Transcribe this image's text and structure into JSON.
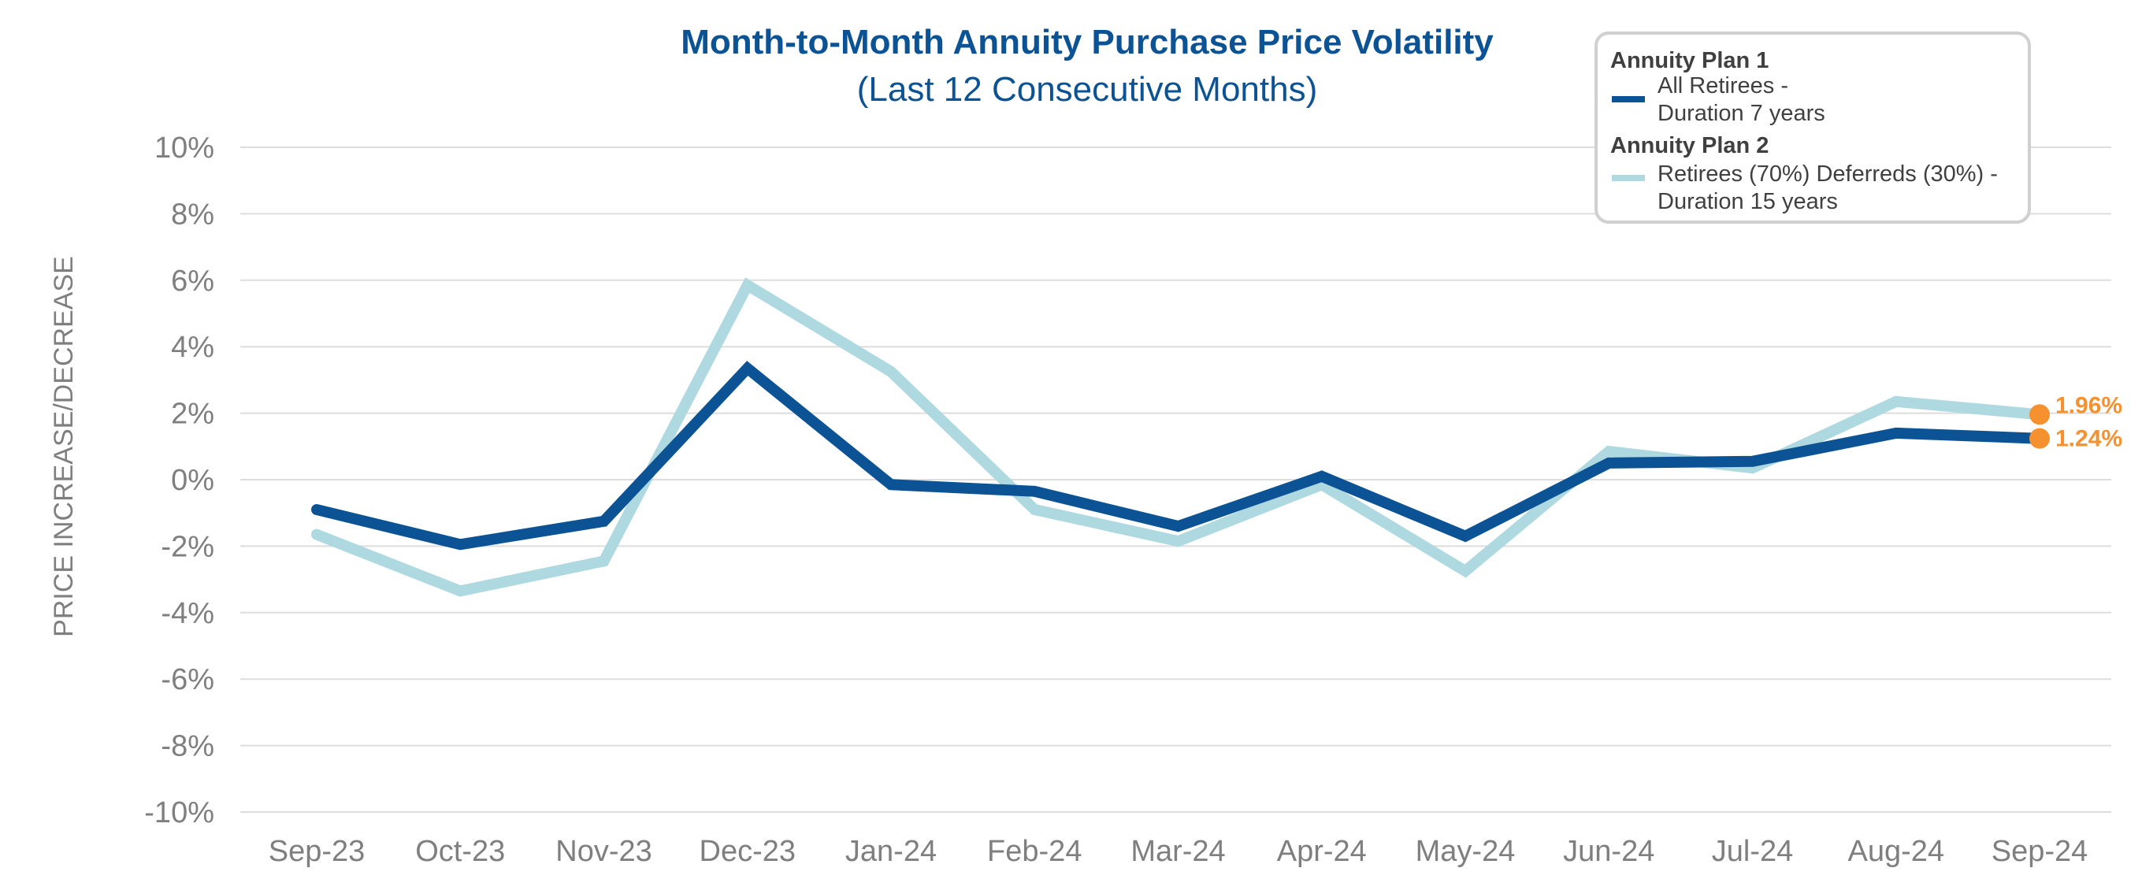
{
  "colors": {
    "title": "#0b5394",
    "plan1": "#0b5394",
    "plan2": "#aed9e0",
    "marker": "#f5922f",
    "grid": "#dddddd",
    "axis_text": "#7f7f7f",
    "legend_text": "#404040",
    "legend_border": "#d0d0d0"
  },
  "chart_data": {
    "type": "line",
    "title": "Month-to-Month Annuity Purchase Price Volatility",
    "subtitle": "(Last 12 Consecutive Months)",
    "xlabel": "",
    "ylabel": "PRICE INCREASE/DECREASE",
    "ylim": [
      -10,
      10
    ],
    "ytick_values": [
      10,
      8,
      6,
      4,
      2,
      0,
      -2,
      -4,
      -6,
      -8,
      -10
    ],
    "ytick_labels": [
      "10%",
      "8%",
      "6%",
      "4%",
      "2%",
      "0%",
      "-2%",
      "-4%",
      "-6%",
      "-8%",
      "-10%"
    ],
    "grid": true,
    "legend_position": "top-right",
    "categories": [
      "Sep-23",
      "Oct-23",
      "Nov-23",
      "Dec-23",
      "Jan-24",
      "Feb-24",
      "Mar-24",
      "Apr-24",
      "May-24",
      "Jun-24",
      "Jul-24",
      "Aug-24",
      "Sep-24"
    ],
    "series": [
      {
        "name": "Annuity Plan 1",
        "heading": "Annuity Plan 1",
        "description_lines": [
          "All Retirees -",
          "Duration 7 years"
        ],
        "color": "#0b5394",
        "values": [
          -0.9,
          -1.95,
          -1.25,
          3.35,
          -0.15,
          -0.35,
          -1.4,
          0.1,
          -1.7,
          0.5,
          0.55,
          1.4,
          1.24
        ]
      },
      {
        "name": "Annuity Plan 2",
        "heading": "Annuity Plan 2",
        "description_lines": [
          "Retirees (70%) Deferreds (30%) -",
          "Duration 15 years"
        ],
        "color": "#aed9e0",
        "values": [
          -1.65,
          -3.35,
          -2.45,
          5.85,
          3.25,
          -0.9,
          -1.85,
          -0.15,
          -2.75,
          0.85,
          0.35,
          2.35,
          1.96
        ]
      }
    ],
    "annotations": [
      {
        "series_index": 1,
        "point_index": 12,
        "label": "1.96%"
      },
      {
        "series_index": 0,
        "point_index": 12,
        "label": "1.24%"
      }
    ]
  }
}
